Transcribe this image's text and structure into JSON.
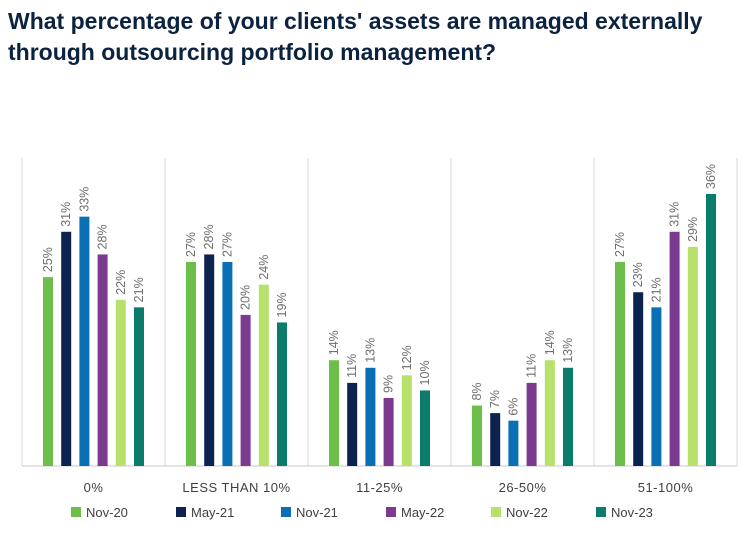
{
  "title": "What percentage of your clients' assets are managed externally through outsourcing portfolio management?",
  "chart_data": {
    "type": "bar",
    "title": "What percentage of your clients' assets are managed externally through outsourcing portfolio management?",
    "categories": [
      "0%",
      "LESS THAN 10%",
      "11-25%",
      "26-50%",
      "51-100%"
    ],
    "series": [
      {
        "name": "Nov-20",
        "color": "#6cc04a",
        "values": [
          25,
          27,
          14,
          8,
          27
        ]
      },
      {
        "name": "May-21",
        "color": "#0c2350",
        "values": [
          31,
          28,
          11,
          7,
          23
        ]
      },
      {
        "name": "Nov-21",
        "color": "#0a70b5",
        "values": [
          33,
          27,
          13,
          6,
          21
        ]
      },
      {
        "name": "May-22",
        "color": "#7b3a8f",
        "values": [
          28,
          20,
          9,
          11,
          31
        ]
      },
      {
        "name": "Nov-22",
        "color": "#b6e26a",
        "values": [
          22,
          24,
          12,
          14,
          29
        ]
      },
      {
        "name": "Nov-23",
        "color": "#0b7b6b",
        "values": [
          21,
          19,
          10,
          13,
          36
        ]
      }
    ],
    "value_suffix": "%",
    "ylim": [
      0,
      36
    ],
    "grid": false,
    "legend_position": "bottom"
  }
}
